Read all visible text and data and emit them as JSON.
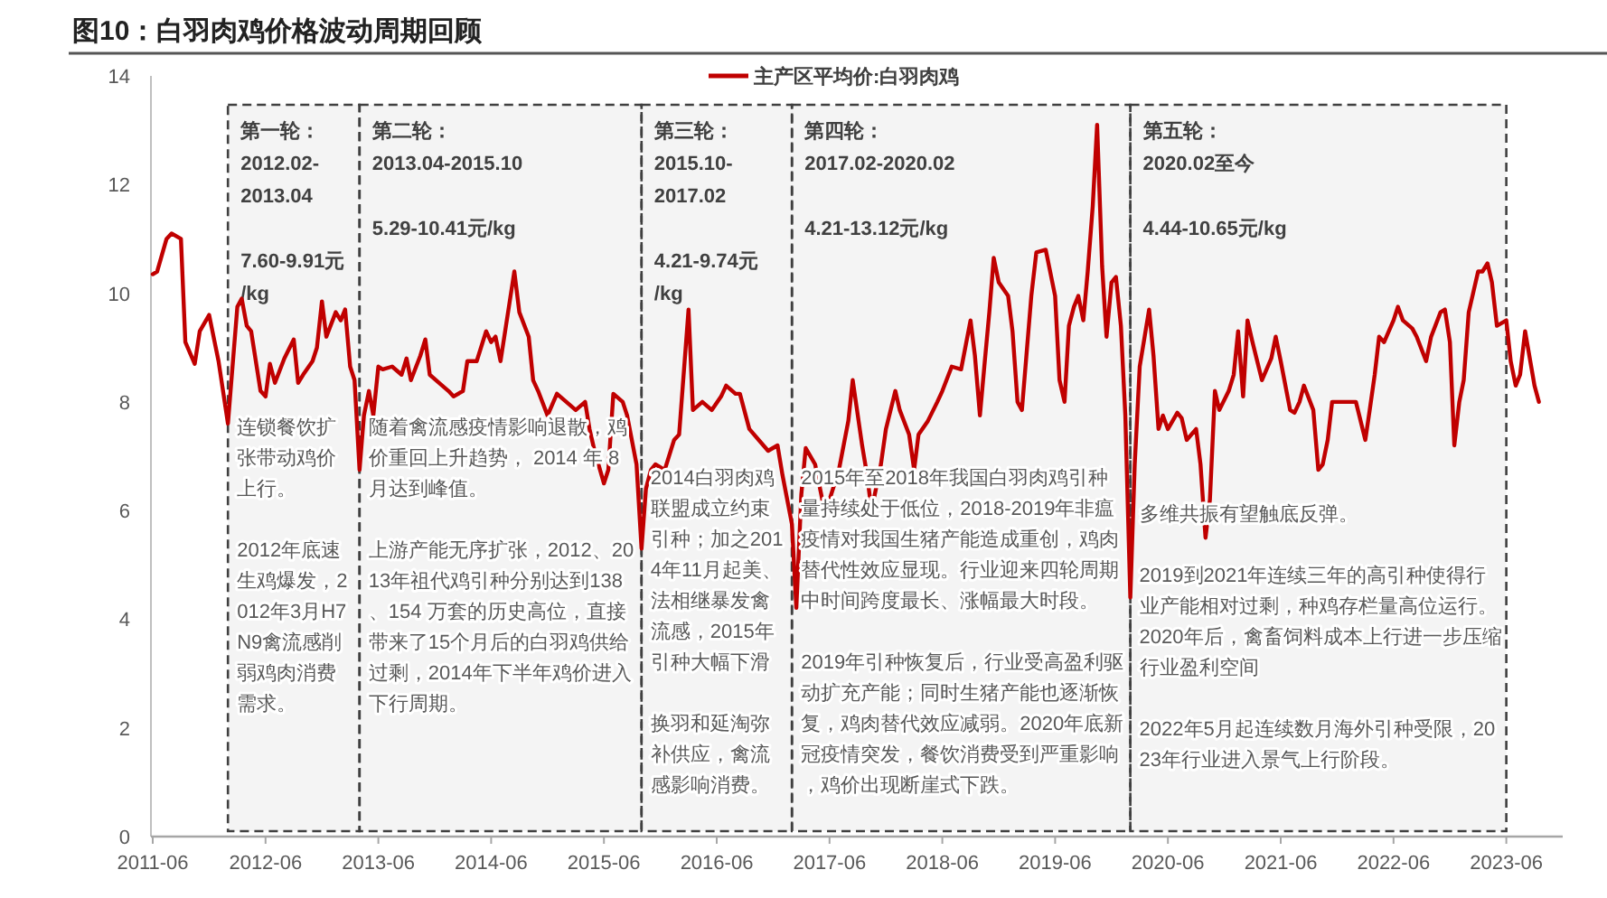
{
  "chart_data": {
    "type": "line",
    "title": "图10：白羽肉鸡价格波动周期回顾",
    "x": [
      "2011-06",
      "2011-06-15",
      "2011-07-15",
      "2011-08",
      "2011-09",
      "2011-09-15",
      "2011-10-15",
      "2011-11",
      "2011-12",
      "2011-12-15",
      "2012-01",
      "2012-02",
      "2012-03",
      "2012-03-15",
      "2012-04",
      "2012-04-15",
      "2012-05-15",
      "2012-06",
      "2012-06-15",
      "2012-07",
      "2012-08",
      "2012-09",
      "2012-09-15",
      "2012-10",
      "2012-11",
      "2012-11-15",
      "2012-12",
      "2012-12-15",
      "2013-01-15",
      "2013-02",
      "2013-02-15",
      "2013-03",
      "2013-03-15",
      "2013-04",
      "2013-04-15",
      "2013-05",
      "2013-05-15",
      "2013-06",
      "2013-06-15",
      "2013-07-15",
      "2013-08-15",
      "2013-09",
      "2013-09-15",
      "2013-10-15",
      "2013-11",
      "2013-11-15",
      "2013-12-15",
      "2014-01-15",
      "2014-02",
      "2014-03",
      "2014-03-15",
      "2014-04-15",
      "2014-05-15",
      "2014-06",
      "2014-06-15",
      "2014-07",
      "2014-08-15",
      "2014-09",
      "2014-10",
      "2014-10-15",
      "2014-11",
      "2014-12",
      "2015-01",
      "2015-02",
      "2015-03",
      "2015-04",
      "2015-04-15",
      "2015-05",
      "2015-06",
      "2015-06-15",
      "2015-07",
      "2015-08",
      "2015-08-15",
      "2015-09-15",
      "2015-10",
      "2015-10-15",
      "2015-11",
      "2015-11-15",
      "2015-12-15",
      "2016-01-15",
      "2016-02",
      "2016-03",
      "2016-03-15",
      "2016-04-15",
      "2016-05-15",
      "2016-06-15",
      "2016-07",
      "2016-08",
      "2016-08-15",
      "2016-09-15",
      "2016-10-15",
      "2016-11-15",
      "2016-12-15",
      "2017-01",
      "2017-02",
      "2017-02-15",
      "2017-03",
      "2017-03-15",
      "2017-04-15",
      "2017-05-15",
      "2017-06",
      "2017-07",
      "2017-08",
      "2017-08-15",
      "2017-09-15",
      "2017-10",
      "2017-10-15",
      "2017-11-15",
      "2017-12",
      "2018-01",
      "2018-01-15",
      "2018-02-15",
      "2018-03",
      "2018-03-15",
      "2018-04-15",
      "2018-05-15",
      "2018-06",
      "2018-07",
      "2018-08",
      "2018-09",
      "2018-09-15",
      "2018-10",
      "2018-10-15",
      "2018-11",
      "2018-11-15",
      "2018-12",
      "2019-01",
      "2019-01-15",
      "2019-02",
      "2019-02-15",
      "2019-03-15",
      "2019-04",
      "2019-05",
      "2019-06",
      "2019-06-15",
      "2019-07",
      "2019-07-15",
      "2019-08",
      "2019-08-15",
      "2019-09",
      "2019-09-15",
      "2019-10",
      "2019-10-15",
      "2019-11",
      "2019-11-15",
      "2019-12",
      "2019-12-15",
      "2020-01",
      "2020-01-15",
      "2020-02",
      "2020-02-15",
      "2020-03",
      "2020-04",
      "2020-04-15",
      "2020-05",
      "2020-05-15",
      "2020-06",
      "2020-07",
      "2020-07-15",
      "2020-08",
      "2020-09",
      "2020-09-15",
      "2020-10",
      "2020-10-15",
      "2020-11",
      "2020-11-15",
      "2020-12-15",
      "2021-01",
      "2021-01-15",
      "2021-02",
      "2021-02-15",
      "2021-03",
      "2021-04",
      "2021-05",
      "2021-05-15",
      "2021-06",
      "2021-07",
      "2021-07-15",
      "2021-08",
      "2021-08-15",
      "2021-09-15",
      "2021-10",
      "2021-10-15",
      "2021-11",
      "2021-11-15",
      "2021-12-15",
      "2022-02",
      "2022-03",
      "2022-03-15",
      "2022-04",
      "2022-04-15",
      "2022-05",
      "2022-06",
      "2022-06-15",
      "2022-07",
      "2022-08",
      "2022-08-15",
      "2022-09-15",
      "2022-10",
      "2022-11",
      "2022-11-15",
      "2022-12",
      "2022-12-15",
      "2023-01",
      "2023-01-15",
      "2023-02",
      "2023-03",
      "2023-03-15",
      "2023-04",
      "2023-04-15",
      "2023-05",
      "2023-06",
      "2023-06-15",
      "2023-07",
      "2023-07-15",
      "2023-08",
      "2023-09",
      "2023-09-15"
    ],
    "series": [
      {
        "name": "主产区平均价:白羽肉鸡",
        "color": "#c00000",
        "values": [
          10.35,
          10.4,
          11.0,
          11.1,
          11.0,
          9.1,
          8.7,
          9.3,
          9.6,
          9.2,
          8.75,
          7.6,
          9.75,
          9.9,
          9.4,
          9.3,
          8.2,
          8.1,
          8.7,
          8.35,
          8.8,
          9.15,
          8.35,
          8.5,
          8.75,
          9.0,
          9.85,
          9.2,
          9.65,
          9.5,
          9.7,
          8.65,
          8.4,
          6.75,
          7.75,
          8.2,
          7.75,
          8.65,
          8.6,
          8.65,
          8.5,
          8.8,
          8.4,
          8.85,
          9.15,
          8.5,
          8.35,
          8.2,
          8.1,
          8.2,
          8.75,
          8.75,
          9.3,
          9.1,
          9.2,
          8.75,
          10.4,
          9.65,
          9.2,
          8.4,
          8.2,
          7.75,
          8.15,
          8.0,
          7.85,
          8.0,
          7.5,
          7.1,
          6.5,
          6.75,
          8.15,
          8.0,
          7.75,
          6.85,
          5.3,
          6.4,
          6.75,
          6.85,
          6.75,
          7.3,
          7.4,
          9.7,
          7.85,
          8.0,
          7.85,
          8.1,
          8.3,
          8.15,
          8.15,
          7.5,
          7.3,
          7.1,
          7.2,
          6.65,
          5.75,
          4.21,
          6.3,
          7.15,
          6.85,
          6.0,
          6.2,
          6.75,
          7.65,
          8.4,
          7.2,
          6.65,
          6.0,
          6.85,
          7.5,
          8.2,
          7.85,
          7.4,
          6.75,
          7.4,
          7.65,
          8.0,
          8.2,
          8.65,
          8.6,
          9.5,
          8.85,
          7.75,
          8.65,
          9.65,
          10.65,
          10.2,
          9.95,
          9.3,
          8.0,
          7.85,
          9.95,
          10.75,
          10.8,
          9.95,
          8.4,
          8.0,
          9.4,
          9.75,
          9.95,
          9.5,
          10.4,
          11.6,
          13.1,
          10.5,
          9.2,
          10.2,
          10.3,
          9.4,
          7.75,
          4.4,
          6.85,
          8.65,
          9.7,
          8.85,
          7.5,
          7.75,
          7.5,
          7.8,
          7.7,
          7.3,
          7.5,
          6.85,
          5.5,
          6.2,
          8.2,
          7.85,
          8.2,
          8.5,
          9.3,
          8.1,
          9.5,
          9.1,
          8.4,
          8.8,
          9.2,
          8.75,
          7.85,
          7.8,
          8.0,
          8.3,
          7.85,
          6.75,
          6.85,
          7.3,
          8.0,
          8.0,
          8.0,
          7.3,
          7.85,
          8.5,
          9.2,
          9.1,
          9.5,
          9.75,
          9.5,
          9.35,
          9.2,
          8.75,
          9.2,
          9.65,
          9.7,
          9.1,
          7.2,
          8.0,
          8.4,
          9.65,
          10.4,
          10.4,
          10.55,
          10.2,
          9.4,
          9.5,
          8.75,
          8.3,
          8.5,
          9.3,
          8.3,
          8.0
        ]
      }
    ],
    "xlim": [
      "2011-06",
      "2023-12"
    ],
    "xticks": [
      "2011-06",
      "2012-06",
      "2013-06",
      "2014-06",
      "2015-06",
      "2016-06",
      "2017-06",
      "2018-06",
      "2019-06",
      "2020-06",
      "2021-06",
      "2022-06",
      "2023-06"
    ],
    "ylim": [
      0,
      14
    ],
    "yticks": [
      0,
      2,
      4,
      6,
      8,
      10,
      12,
      14
    ],
    "grid": false,
    "legend": "top",
    "marker": "none",
    "line_style": "solid",
    "bands": [
      {
        "axis": "x",
        "from": "2012-02",
        "to": "2013-04",
        "label": "第一轮：\n2012.02-\n2013.04\n\n7.60-9.91元\n/kg",
        "color": "#404040"
      },
      {
        "axis": "x",
        "from": "2013-04",
        "to": "2015-10",
        "label": "第二轮：\n2013.04-2015.10\n\n5.29-10.41元/kg",
        "color": "#404040"
      },
      {
        "axis": "x",
        "from": "2015-10",
        "to": "2017-02",
        "label": "第三轮：\n2015.10-\n2017.02\n\n4.21-9.74元\n/kg",
        "color": "#404040"
      },
      {
        "axis": "x",
        "from": "2017-02",
        "to": "2020-02",
        "label": "第四轮：\n2017.02-2020.02\n\n4.21-13.12元/kg",
        "color": "#404040"
      },
      {
        "axis": "x",
        "from": "2020-02",
        "to": "2023-06",
        "label": "第五轮：\n2020.02至今\n\n4.44-10.65元/kg",
        "color": "#404040"
      }
    ],
    "annotations": [
      "连锁餐饮扩张带动鸡价上行。",
      "2012年底速生鸡爆发，2012年3月H7N9禽流感削弱鸡肉消费需求。",
      "随着禽流感疫情影响退散，鸡价重回上升趋势， 2014 年 8月达到峰值。",
      "上游产能无序扩张，2012、2013年祖代鸡引种分别达到138、154 万套的历史高位，直接带来了15个月后的白羽鸡供给过剩，2014年下半年鸡价进入下行周期。",
      "2014白羽肉鸡联盟成立约束引种；加之2014年11月起美、法相继暴发禽流感，2015年引种大幅下滑",
      "换羽和延淘弥补供应，禽流感影响消费。",
      "2015年至2018年我国白羽肉鸡引种量持续处于低位，2018-2019年非瘟疫情对我国生猪产能造成重创，鸡肉替代性效应显现。行业迎来四轮周期中时间跨度最长、涨幅最大时段。",
      "2019年引种恢复后，行业受高盈利驱动扩充产能；同时生猪产能也逐渐恢复，鸡肉替代效应减弱。2020年底新冠疫情突发，餐饮消费受到严重影响，鸡价出现断崖式下跌。",
      "多维共振有望触底反弹。",
      "2019到2021年连续三年的高引种使得行业产能相对过剩，种鸡存栏量高位运行。2020年后，禽畜饲料成本上行进一步压缩行业盈利空间",
      "2022年5月起连续数月海外引种受限，2023年行业进入景气上行阶段。"
    ]
  }
}
